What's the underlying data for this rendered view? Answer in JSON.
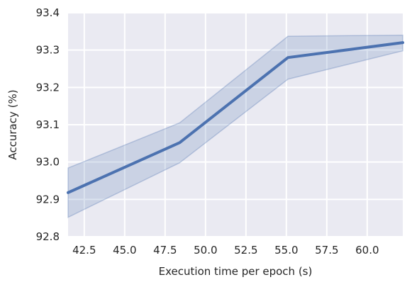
{
  "chart_data": {
    "type": "line",
    "title": "",
    "xlabel": "Execution time per epoch (s)",
    "ylabel": "Accuracy (%)",
    "xlim": [
      41.5,
      62.2
    ],
    "ylim": [
      92.8,
      93.4
    ],
    "xticks": [
      42.5,
      45.0,
      47.5,
      50.0,
      52.5,
      55.0,
      57.5,
      60.0
    ],
    "xtick_labels": [
      "42.5",
      "45.0",
      "47.5",
      "50.0",
      "52.5",
      "55.0",
      "57.5",
      "60.0"
    ],
    "yticks": [
      92.8,
      92.9,
      93.0,
      93.1,
      93.2,
      93.3,
      93.4
    ],
    "ytick_labels": [
      "92.8",
      "92.9",
      "93.0",
      "93.1",
      "93.2",
      "93.3",
      "93.4"
    ],
    "grid": true,
    "legend": "none",
    "series": [
      {
        "x": [
          41.5,
          48.4,
          55.1,
          62.2
        ],
        "y": [
          92.918,
          93.052,
          93.28,
          93.32
        ],
        "ci_lower": [
          92.852,
          92.998,
          93.222,
          93.298
        ],
        "ci_upper": [
          92.984,
          93.105,
          93.337,
          93.34
        ]
      }
    ],
    "colors": {
      "line": "#4c72b0",
      "band": "#4c72b0",
      "plot_background": "#eaeaf2",
      "grid": "#ffffff"
    }
  }
}
